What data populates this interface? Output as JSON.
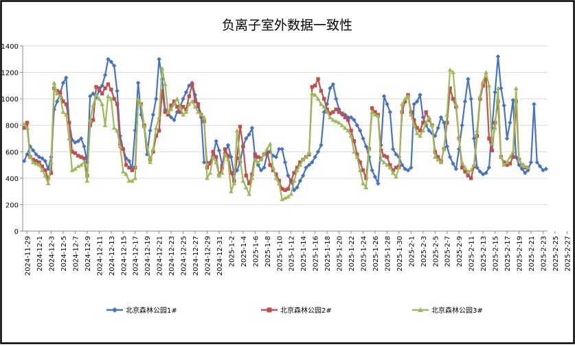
{
  "colors": {
    "background": "#ffffff",
    "border": "#000000",
    "grid": "#d9d9d9",
    "axis": "#868686",
    "series": [
      "#4472c4",
      "#c0504d",
      "#9bbb59"
    ]
  },
  "chart_data": {
    "type": "line",
    "title": "负离子室外数据一致性",
    "xlabel": "",
    "ylabel": "",
    "ylim": [
      0,
      1400
    ],
    "yticks": [
      0,
      200,
      400,
      600,
      800,
      1000,
      1200,
      1400
    ],
    "grid": "horizontal",
    "legend_position": "bottom",
    "x_tick_labels": [
      "2024-11-29",
      "2024-12-1",
      "2024-12-3",
      "2024-12-5",
      "2024-12-7",
      "2024-12-9",
      "2024-12-11",
      "2024-12-13",
      "2024-12-15",
      "2024-12-17",
      "2024-12-19",
      "2024-12-21",
      "2024-12-23",
      "2024-12-25",
      "2024-12-27",
      "2024-12-29",
      "2024-12-31",
      "2025-1-2",
      "2025-1-4",
      "2025-1-6",
      "2025-1-8",
      "2025-1-10",
      "2025-1-12",
      "2025-1-14",
      "2025-1-16",
      "2025-1-18",
      "2025-1-20",
      "2025-1-22",
      "2025-1-24",
      "2025-1-26",
      "2025-1-28",
      "2025-1-30",
      "2025-2-1",
      "2025-2-3",
      "2025-2-5",
      "2025-2-7",
      "2025-2-9",
      "2025-2-11",
      "2025-2-13",
      "2025-2-15",
      "2025-2-17",
      "2025-2-19",
      "2025-2-21",
      "2025-2-23",
      "2025-2-25",
      "2025-2-27"
    ],
    "points_per_day": 2,
    "series": [
      {
        "name": "北京森林公园1#",
        "values": [
          530,
          580,
          640,
          610,
          580,
          560,
          550,
          530,
          470,
          560,
          920,
          980,
          1040,
          1120,
          1160,
          820,
          690,
          670,
          680,
          700,
          640,
          520,
          1020,
          1040,
          1010,
          1060,
          1100,
          1180,
          1300,
          1280,
          1250,
          1060,
          720,
          620,
          550,
          530,
          470,
          760,
          1120,
          880,
          790,
          580,
          760,
          880,
          1000,
          1300,
          1150,
          920,
          900,
          860,
          840,
          900,
          940,
          1000,
          1050,
          1100,
          1120,
          1030,
          940,
          860,
          520,
          520,
          520,
          570,
          680,
          610,
          500,
          590,
          650,
          560,
          430,
          460,
          520,
          640,
          700,
          730,
          780,
          560,
          500,
          460,
          480,
          580,
          600,
          570,
          560,
          620,
          620,
          520,
          420,
          380,
          310,
          330,
          380,
          420,
          480,
          500,
          520,
          560,
          600,
          650,
          900,
          960,
          1080,
          1110,
          1000,
          920,
          880,
          880,
          860,
          860,
          840,
          800,
          760,
          700,
          640,
          560,
          460,
          410,
          360,
          650,
          1020,
          960,
          900,
          620,
          580,
          560,
          500,
          470,
          460,
          480,
          960,
          980,
          1030,
          860,
          800,
          760,
          740,
          720,
          780,
          860,
          820,
          640,
          560,
          510,
          470,
          620,
          800,
          980,
          1150,
          1000,
          700,
          480,
          450,
          430,
          440,
          480,
          780,
          1050,
          1320,
          1080,
          950,
          700,
          820,
          990,
          560,
          500,
          470,
          440,
          460,
          520,
          960,
          520,
          490,
          460,
          470
        ]
      },
      {
        "name": "北京森林公园2#",
        "values": [
          780,
          820,
          560,
          540,
          530,
          520,
          490,
          460,
          400,
          440,
          1080,
          1060,
          1050,
          980,
          960,
          820,
          600,
          590,
          570,
          560,
          550,
          420,
          800,
          840,
          1090,
          1080,
          1040,
          1080,
          1110,
          1070,
          1000,
          960,
          660,
          620,
          500,
          480,
          460,
          480,
          980,
          960,
          800,
          640,
          540,
          600,
          720,
          760,
          1060,
          900,
          880,
          950,
          980,
          940,
          900,
          940,
          920,
          1020,
          1110,
          980,
          960,
          880,
          830,
          480,
          510,
          600,
          560,
          420,
          480,
          620,
          570,
          440,
          380,
          550,
          790,
          640,
          420,
          360,
          430,
          580,
          560,
          550,
          580,
          600,
          500,
          460,
          430,
          380,
          320,
          310,
          320,
          380,
          440,
          480,
          520,
          540,
          560,
          580,
          1090,
          1100,
          1150,
          1060,
          1000,
          920,
          890,
          900,
          920,
          900,
          890,
          860,
          840,
          760,
          680,
          580,
          520,
          460,
          400,
          620,
          930,
          900,
          880,
          610,
          570,
          560,
          500,
          460,
          480,
          490,
          900,
          980,
          1030,
          900,
          840,
          780,
          760,
          820,
          900,
          840,
          800,
          600,
          560,
          530,
          620,
          820,
          1080,
          1000,
          940,
          700,
          480,
          450,
          420,
          400,
          490,
          720,
          1000,
          1100,
          1150,
          700,
          610,
          820,
          980,
          560,
          520,
          500,
          510,
          560,
          980,
          540,
          500,
          480,
          480
        ]
      },
      {
        "name": "北京森林公园3#",
        "values": [
          810,
          780,
          560,
          520,
          510,
          500,
          460,
          420,
          360,
          520,
          1120,
          1040,
          1020,
          900,
          880,
          700,
          460,
          470,
          490,
          500,
          520,
          380,
          840,
          950,
          1030,
          1000,
          960,
          800,
          1020,
          1000,
          780,
          760,
          640,
          450,
          430,
          380,
          380,
          400,
          1000,
          960,
          790,
          640,
          520,
          620,
          780,
          860,
          1230,
          1110,
          900,
          920,
          960,
          1000,
          940,
          880,
          900,
          960,
          980,
          940,
          900,
          880,
          860,
          400,
          440,
          560,
          520,
          420,
          440,
          580,
          540,
          300,
          360,
          760,
          540,
          380,
          330,
          280,
          400,
          540,
          520,
          540,
          580,
          620,
          660,
          480,
          400,
          360,
          240,
          250,
          260,
          280,
          380,
          460,
          500,
          540,
          560,
          590,
          1040,
          1030,
          1000,
          960,
          940,
          900,
          860,
          840,
          830,
          820,
          800,
          780,
          760,
          720,
          600,
          560,
          460,
          360,
          330,
          620,
          900,
          880,
          870,
          540,
          520,
          500,
          480,
          440,
          410,
          480,
          960,
          1000,
          1020,
          880,
          800,
          740,
          720,
          760,
          820,
          860,
          800,
          560,
          540,
          520,
          620,
          880,
          1220,
          1200,
          960,
          700,
          520,
          480,
          450,
          460,
          500,
          760,
          1020,
          1130,
          1200,
          1100,
          660,
          780,
          1080,
          560,
          500,
          520,
          560,
          600,
          1080,
          540,
          500,
          490,
          480
        ]
      }
    ]
  }
}
